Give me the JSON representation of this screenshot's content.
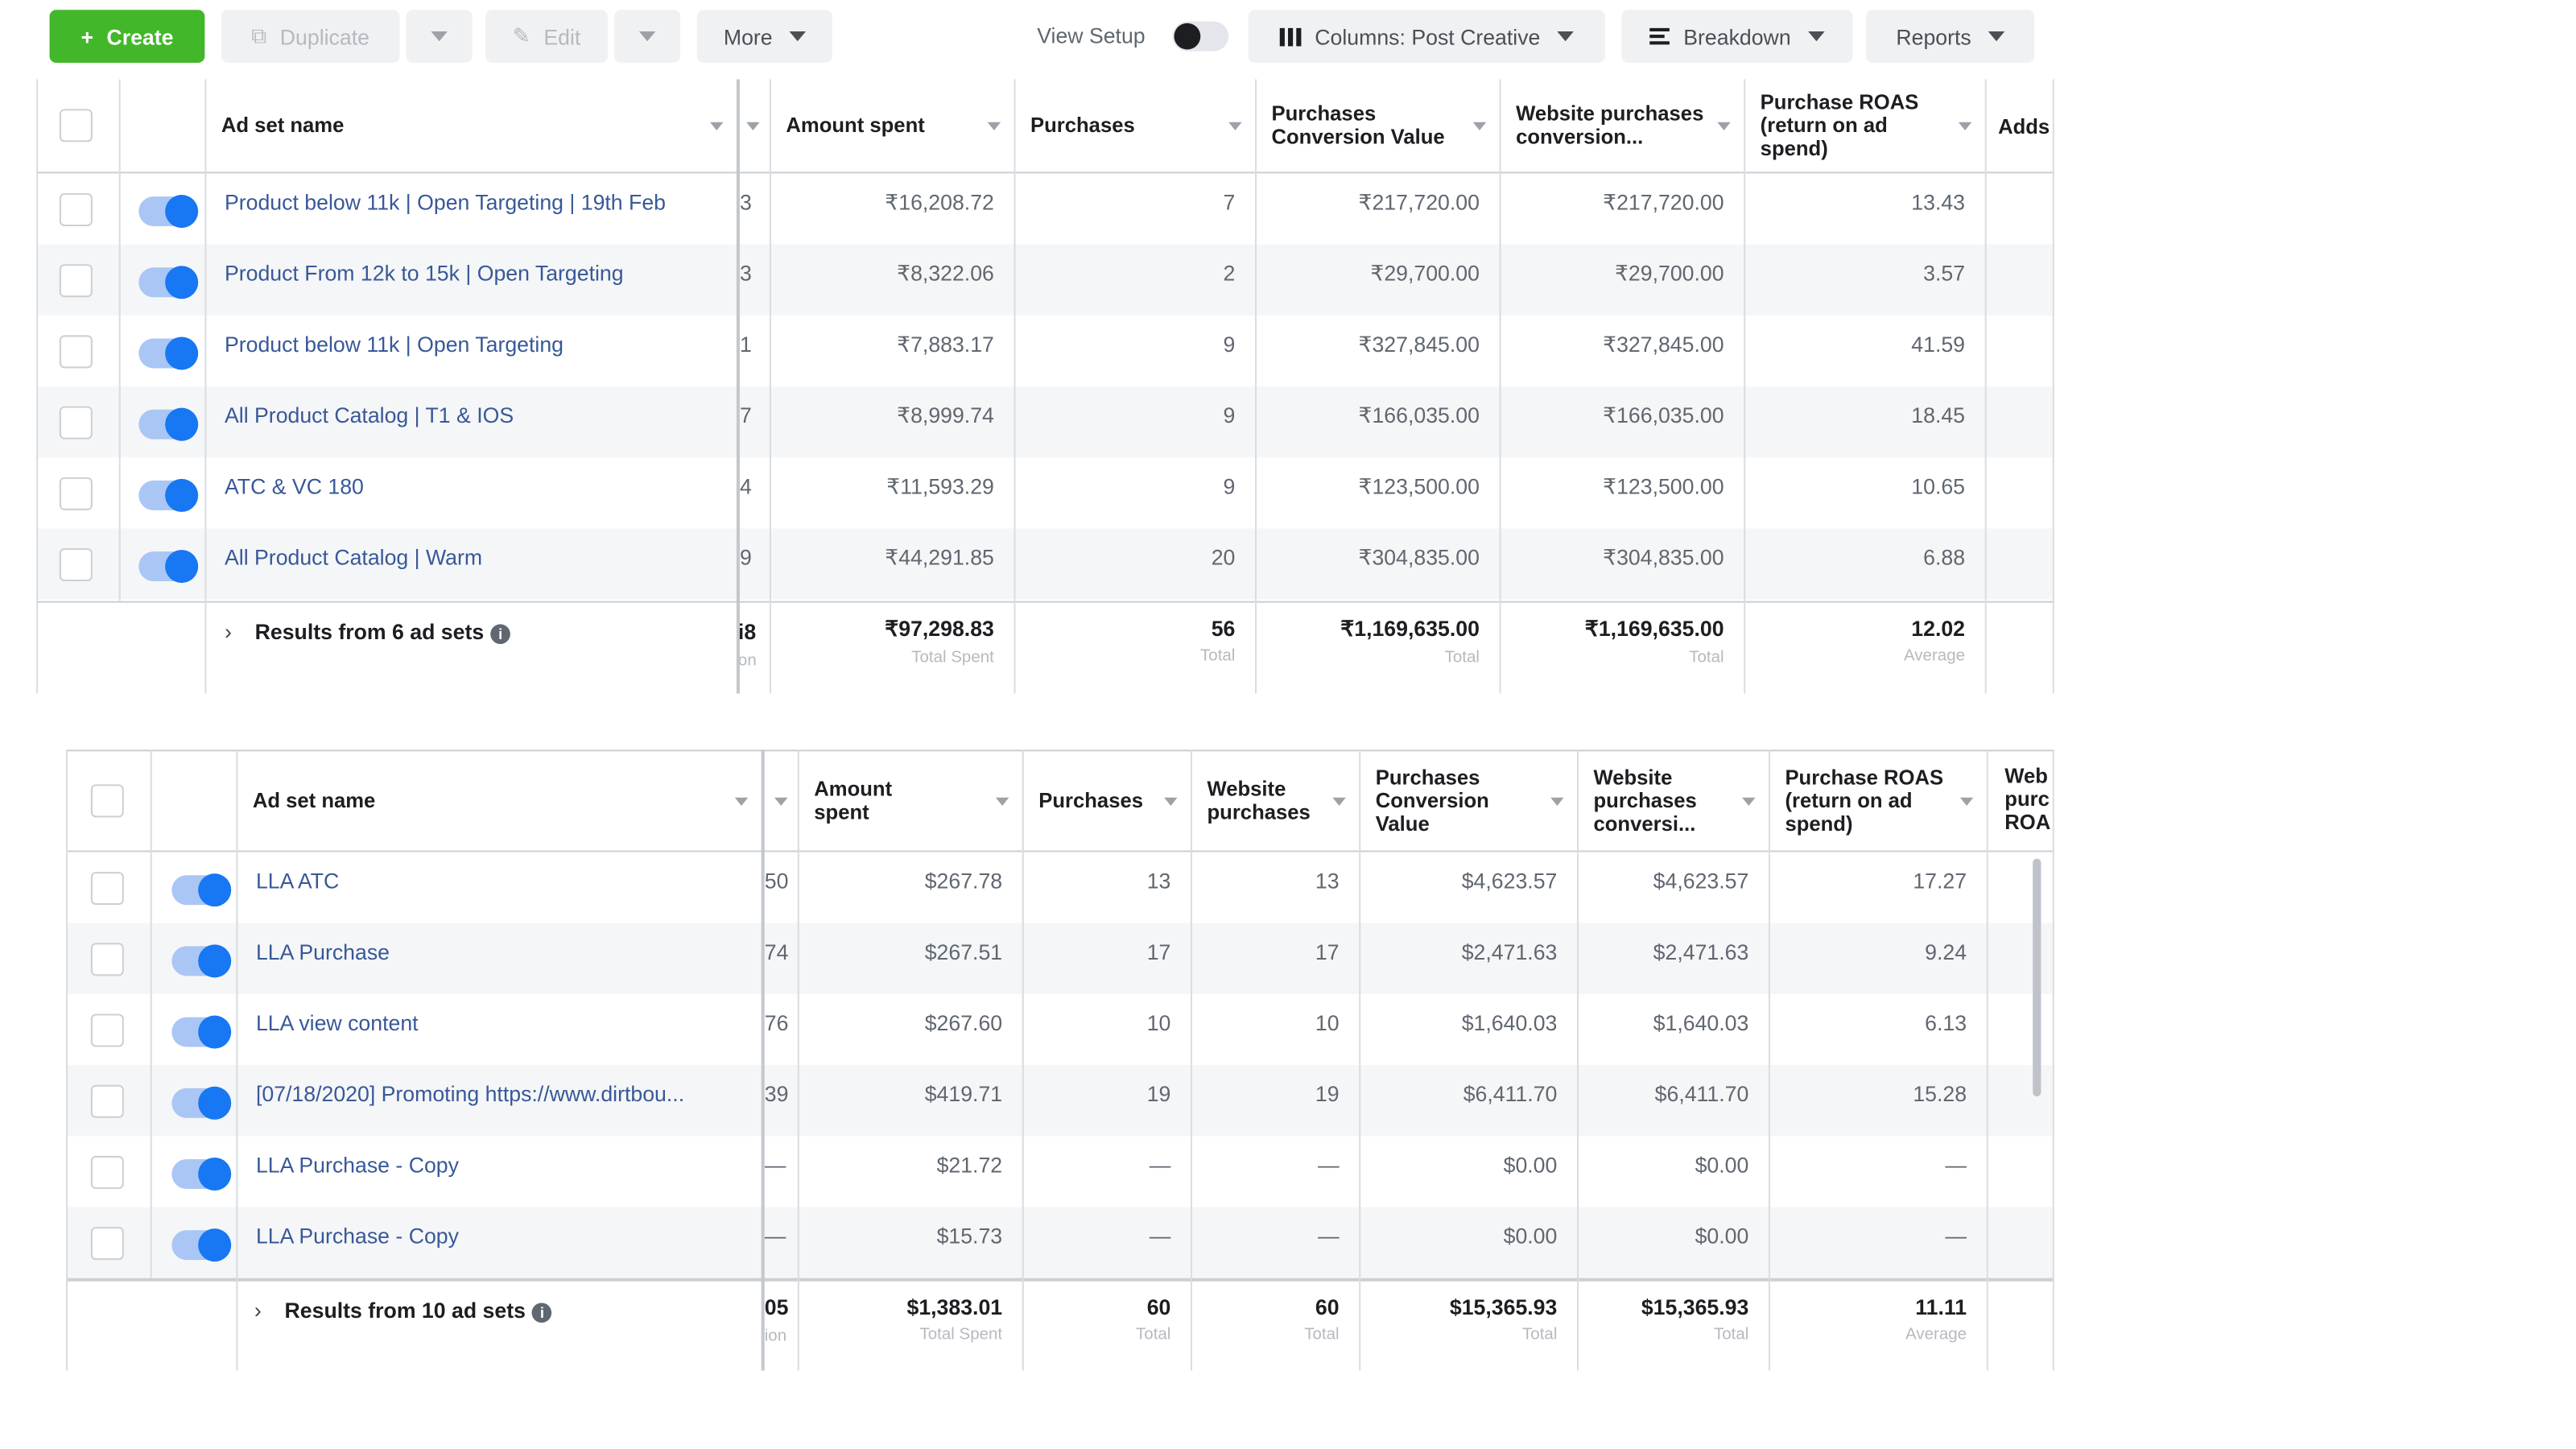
{
  "toolbar": {
    "create": "Create",
    "duplicate": "Duplicate",
    "edit": "Edit",
    "more": "More",
    "view_setup": "View Setup",
    "columns": "Columns: Post Creative",
    "breakdown": "Breakdown",
    "reports": "Reports"
  },
  "table1": {
    "headers": {
      "name": "Ad set name",
      "amount": "Amount spent",
      "purchases": "Purchases",
      "conv_value": "Purchases Conversion Value",
      "website_conv": "Website purchases conversion...",
      "roas": "Purchase ROAS (return on ad spend)",
      "cut": "Adds"
    },
    "rows": [
      {
        "frag": "3",
        "name": "Product below 11k | Open Targeting | 19th Feb",
        "amount": "₹16,208.72",
        "purchases": "7",
        "conv_value": "₹217,720.00",
        "website_conv": "₹217,720.00",
        "roas": "13.43"
      },
      {
        "frag": "3",
        "name": "Product From 12k to 15k | Open Targeting",
        "amount": "₹8,322.06",
        "purchases": "2",
        "conv_value": "₹29,700.00",
        "website_conv": "₹29,700.00",
        "roas": "3.57"
      },
      {
        "frag": "1",
        "name": "Product below 11k | Open Targeting",
        "amount": "₹7,883.17",
        "purchases": "9",
        "conv_value": "₹327,845.00",
        "website_conv": "₹327,845.00",
        "roas": "41.59"
      },
      {
        "frag": "7",
        "name": "All Product Catalog | T1 & IOS",
        "amount": "₹8,999.74",
        "purchases": "9",
        "conv_value": "₹166,035.00",
        "website_conv": "₹166,035.00",
        "roas": "18.45"
      },
      {
        "frag": "4",
        "name": "ATC & VC 180",
        "amount": "₹11,593.29",
        "purchases": "9",
        "conv_value": "₹123,500.00",
        "website_conv": "₹123,500.00",
        "roas": "10.65"
      },
      {
        "frag": "9",
        "name": "All Product Catalog | Warm",
        "amount": "₹44,291.85",
        "purchases": "20",
        "conv_value": "₹304,835.00",
        "website_conv": "₹304,835.00",
        "roas": "6.88"
      }
    ],
    "footer": {
      "label": "Results from 6 ad sets",
      "frag": "i8",
      "frag_sub": "on",
      "amount": "₹97,298.83",
      "amount_sub": "Total Spent",
      "purchases": "56",
      "purchases_sub": "Total",
      "conv_value": "₹1,169,635.00",
      "conv_value_sub": "Total",
      "website_conv": "₹1,169,635.00",
      "website_conv_sub": "Total",
      "roas": "12.02",
      "roas_sub": "Average"
    }
  },
  "table2": {
    "headers": {
      "name": "Ad set name",
      "amount": "Amount spent",
      "purchases": "Purchases",
      "website_purchases": "Website purchases",
      "conv_value": "Purchases Conversion Value",
      "website_conv": "Website purchases conversi...",
      "roas": "Purchase ROAS (return on ad spend)",
      "cut": "Web purc ROA"
    },
    "rows": [
      {
        "frag": "50",
        "name": "LLA ATC",
        "amount": "$267.78",
        "purchases": "13",
        "website_purchases": "13",
        "conv_value": "$4,623.57",
        "website_conv": "$4,623.57",
        "roas": "17.27"
      },
      {
        "frag": "74",
        "name": "LLA Purchase",
        "amount": "$267.51",
        "purchases": "17",
        "website_purchases": "17",
        "conv_value": "$2,471.63",
        "website_conv": "$2,471.63",
        "roas": "9.24"
      },
      {
        "frag": "76",
        "name": "LLA view content",
        "amount": "$267.60",
        "purchases": "10",
        "website_purchases": "10",
        "conv_value": "$1,640.03",
        "website_conv": "$1,640.03",
        "roas": "6.13"
      },
      {
        "frag": "39",
        "name": "[07/18/2020] Promoting https://www.dirtbou...",
        "amount": "$419.71",
        "purchases": "19",
        "website_purchases": "19",
        "conv_value": "$6,411.70",
        "website_conv": "$6,411.70",
        "roas": "15.28"
      },
      {
        "frag": "—",
        "name": "LLA Purchase - Copy",
        "amount": "$21.72",
        "purchases": "—",
        "website_purchases": "—",
        "conv_value": "$0.00",
        "website_conv": "$0.00",
        "roas": "—"
      },
      {
        "frag": "—",
        "name": "LLA Purchase - Copy",
        "amount": "$15.73",
        "purchases": "—",
        "website_purchases": "—",
        "conv_value": "$0.00",
        "website_conv": "$0.00",
        "roas": "—"
      }
    ],
    "footer": {
      "label": "Results from 10 ad sets",
      "frag": "05",
      "frag_sub": "ion",
      "amount": "$1,383.01",
      "amount_sub": "Total Spent",
      "purchases": "60",
      "purchases_sub": "Total",
      "website_purchases": "60",
      "website_purchases_sub": "Total",
      "conv_value": "$15,365.93",
      "conv_value_sub": "Total",
      "website_conv": "$15,365.93",
      "website_conv_sub": "Total",
      "roas": "11.11",
      "roas_sub": "Average"
    }
  }
}
